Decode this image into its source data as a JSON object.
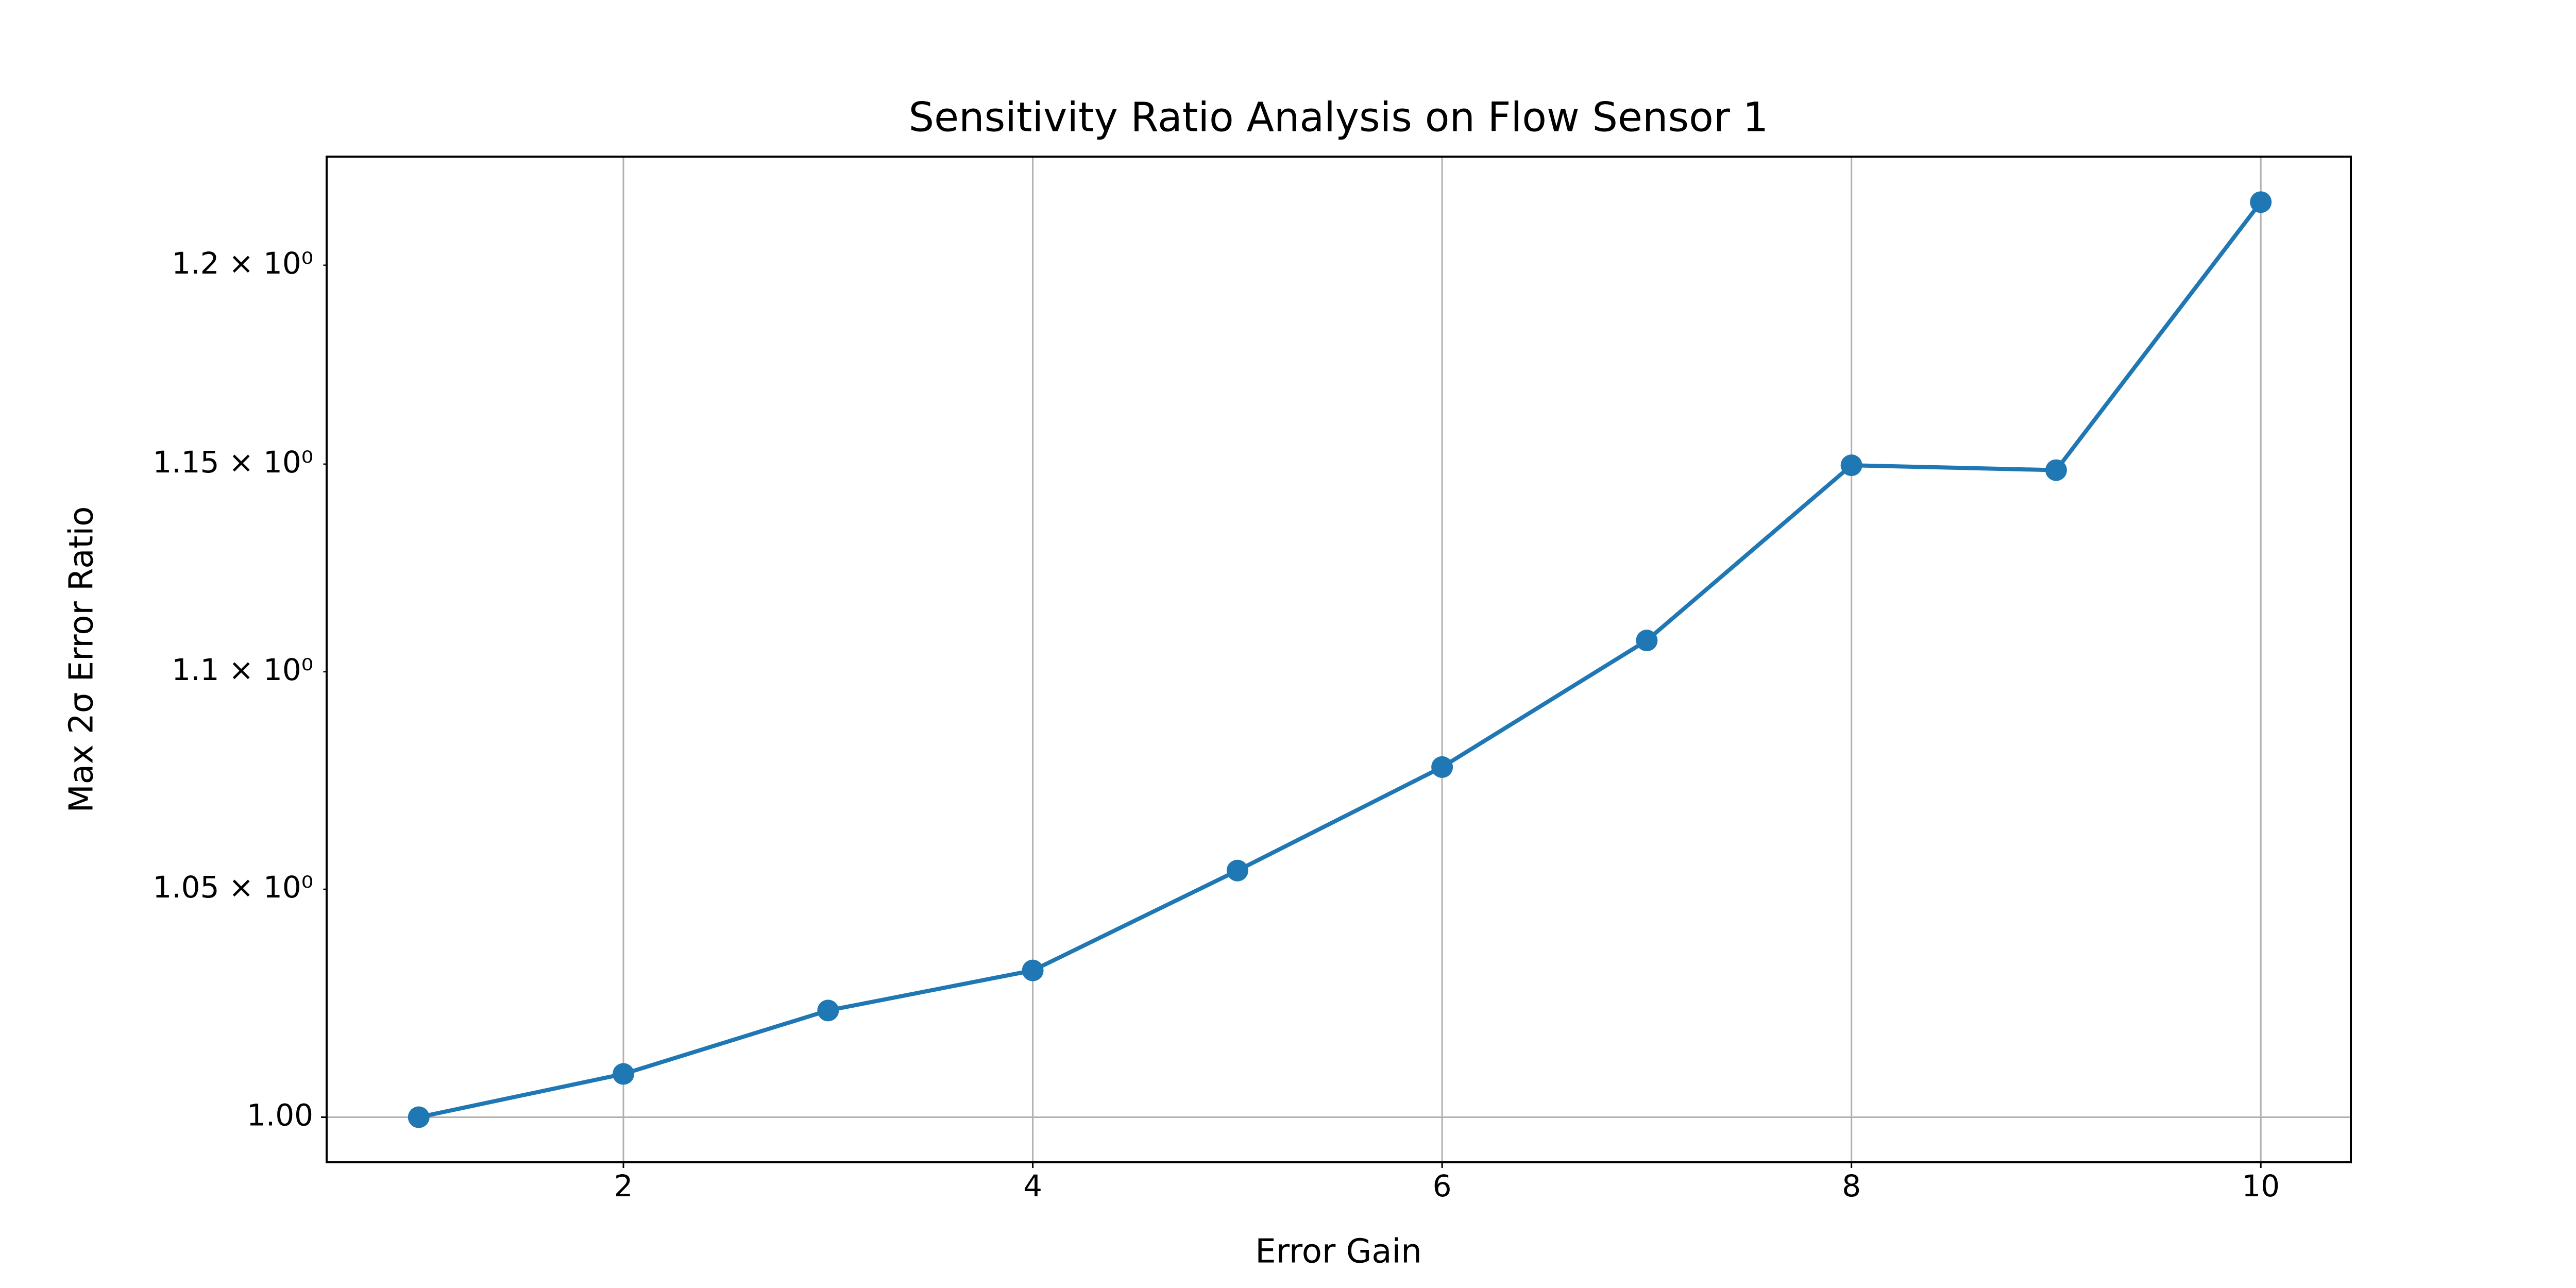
{
  "chart_data": {
    "type": "line",
    "title": "Sensitivity Ratio Analysis on Flow Sensor 1",
    "xlabel": "Error Gain",
    "ylabel": "Max 2σ Error Ratio",
    "x": [
      1,
      2,
      3,
      4,
      5,
      6,
      7,
      8,
      9,
      10
    ],
    "series": [
      {
        "name": "Max 2σ Error Ratio",
        "color": "#1f77b4",
        "values": [
          1.0,
          1.0093,
          1.0231,
          1.0319,
          1.0542,
          1.0778,
          1.1074,
          1.1497,
          1.1485,
          1.2163
        ]
      }
    ],
    "xlim": [
      0.55,
      10.44
    ],
    "xticks": [
      2,
      4,
      6,
      8,
      10
    ],
    "ylim": [
      0.9904,
      1.2282
    ],
    "yscale": "log",
    "yticks": [
      {
        "value": 1,
        "label": "1.00"
      }
    ],
    "yminorticks": [
      {
        "value": 1.05,
        "label": "1.05 × 10⁰"
      },
      {
        "value": 1.1,
        "label": "1.1 × 10⁰"
      },
      {
        "value": 1.15,
        "label": "1.15 × 10⁰"
      },
      {
        "value": 1.2,
        "label": "1.2 × 10⁰"
      }
    ],
    "grid": true
  }
}
